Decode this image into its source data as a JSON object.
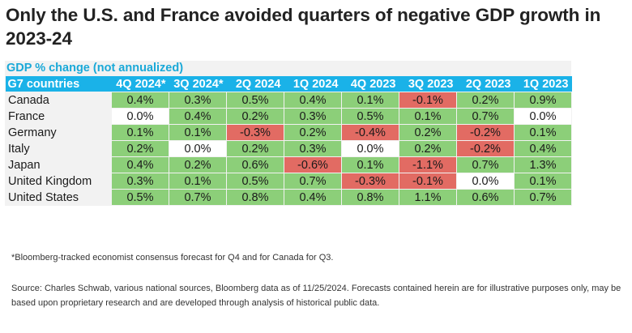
{
  "title": "Only the U.S. and France avoided quarters of negative GDP growth in 2023-24",
  "chart_data": {
    "type": "table",
    "subtitle": "GDP % change (not annualized)",
    "corner_label": "G7 countries",
    "columns": [
      "4Q 2024*",
      "3Q 2024*",
      "2Q 2024",
      "1Q 2024",
      "4Q 2023",
      "3Q 2023",
      "2Q 2023",
      "1Q 2023"
    ],
    "rows": [
      {
        "country": "Canada",
        "values": [
          "0.4%",
          "0.3%",
          "0.5%",
          "0.4%",
          "0.1%",
          "-0.1%",
          "0.2%",
          "0.9%"
        ]
      },
      {
        "country": "France",
        "values": [
          "0.0%",
          "0.4%",
          "0.2%",
          "0.3%",
          "0.5%",
          "0.1%",
          "0.7%",
          "0.0%"
        ]
      },
      {
        "country": "Germany",
        "values": [
          "0.1%",
          "0.1%",
          "-0.3%",
          "0.2%",
          "-0.4%",
          "0.2%",
          "-0.2%",
          "0.1%"
        ]
      },
      {
        "country": "Italy",
        "values": [
          "0.2%",
          "0.0%",
          "0.2%",
          "0.3%",
          "0.0%",
          "0.2%",
          "-0.2%",
          "0.4%"
        ]
      },
      {
        "country": "Japan",
        "values": [
          "0.4%",
          "0.2%",
          "0.6%",
          "-0.6%",
          "0.1%",
          "-1.1%",
          "0.7%",
          "1.3%"
        ]
      },
      {
        "country": "United Kingdom",
        "values": [
          "0.3%",
          "0.1%",
          "0.5%",
          "0.7%",
          "-0.3%",
          "-0.1%",
          "0.0%",
          "0.1%"
        ]
      },
      {
        "country": "United States",
        "values": [
          "0.5%",
          "0.7%",
          "0.8%",
          "0.4%",
          "0.8%",
          "1.1%",
          "0.6%",
          "0.7%"
        ]
      }
    ],
    "colors": {
      "positive": "#8ccf79",
      "negative": "#e26b63",
      "zero": "#ffffff",
      "header": "#1ab2e8"
    }
  },
  "footnote": "*Bloomberg-tracked economist consensus forecast for Q4 and for Canada for Q3.",
  "source": "Source: Charles Schwab, various national sources, Bloomberg data as of 11/25/2024. Forecasts contained herein are for illustrative purposes only, may be based upon proprietary research and are developed through analysis of historical public data."
}
